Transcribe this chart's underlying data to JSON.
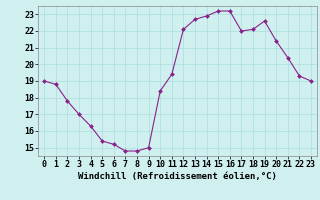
{
  "x": [
    0,
    1,
    2,
    3,
    4,
    5,
    6,
    7,
    8,
    9,
    10,
    11,
    12,
    13,
    14,
    15,
    16,
    17,
    18,
    19,
    20,
    21,
    22,
    23
  ],
  "y": [
    19.0,
    18.8,
    17.8,
    17.0,
    16.3,
    15.4,
    15.2,
    14.8,
    14.8,
    15.0,
    18.4,
    19.4,
    22.1,
    22.7,
    22.9,
    23.2,
    23.2,
    22.0,
    22.1,
    22.6,
    21.4,
    20.4,
    19.3,
    19.0
  ],
  "x_ticks": [
    0,
    1,
    2,
    3,
    4,
    5,
    6,
    7,
    8,
    9,
    10,
    11,
    12,
    13,
    14,
    15,
    16,
    17,
    18,
    19,
    20,
    21,
    22,
    23
  ],
  "y_ticks": [
    15,
    16,
    17,
    18,
    19,
    20,
    21,
    22,
    23
  ],
  "ylim": [
    14.5,
    23.5
  ],
  "xlim": [
    -0.5,
    23.5
  ],
  "line_color": "#882288",
  "marker_color": "#882288",
  "bg_color": "#d0f0f0",
  "grid_color": "#aadddd",
  "xlabel": "Windchill (Refroidissement éolien,°C)",
  "xlabel_fontsize": 6.5,
  "tick_fontsize": 6,
  "title": ""
}
